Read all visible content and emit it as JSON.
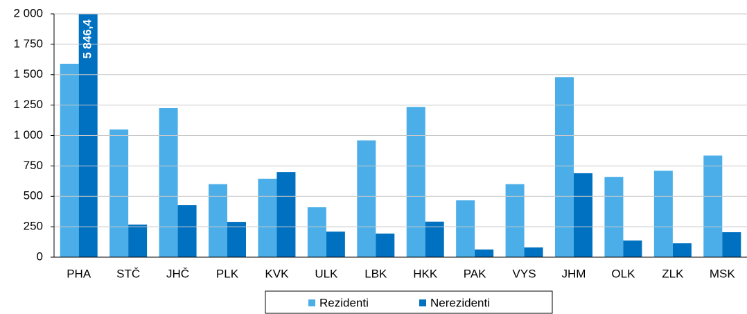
{
  "chart_data": {
    "type": "bar",
    "categories": [
      "PHA",
      "STČ",
      "JHČ",
      "PLK",
      "KVK",
      "ULK",
      "LBK",
      "HKK",
      "PAK",
      "VYS",
      "JHM",
      "OLK",
      "ZLK",
      "MSK"
    ],
    "series": [
      {
        "name": "Rezidenti",
        "color": "#4baee8",
        "values": [
          1590,
          1050,
          1225,
          600,
          645,
          410,
          960,
          1235,
          467,
          600,
          1480,
          660,
          710,
          835
        ]
      },
      {
        "name": "Nerezidenti",
        "color": "#0070c0",
        "values": [
          5846.4,
          268,
          427,
          290,
          700,
          210,
          194,
          292,
          63,
          80,
          690,
          137,
          114,
          205
        ],
        "value_labels": [
          "5 846,4",
          null,
          null,
          null,
          null,
          null,
          null,
          null,
          null,
          null,
          null,
          null,
          null,
          null
        ]
      }
    ],
    "ylim": [
      0,
      2000
    ],
    "yticks": [
      0,
      250,
      500,
      750,
      {
        "value": 1000,
        "label": "1 000"
      },
      {
        "value": 1250,
        "label": "1 250"
      },
      {
        "value": 1500,
        "label": "1 500"
      },
      {
        "value": 1750,
        "label": "1 750"
      },
      {
        "value": 2000,
        "label": "2 000"
      }
    ],
    "grid": true,
    "legend": "bottom"
  }
}
